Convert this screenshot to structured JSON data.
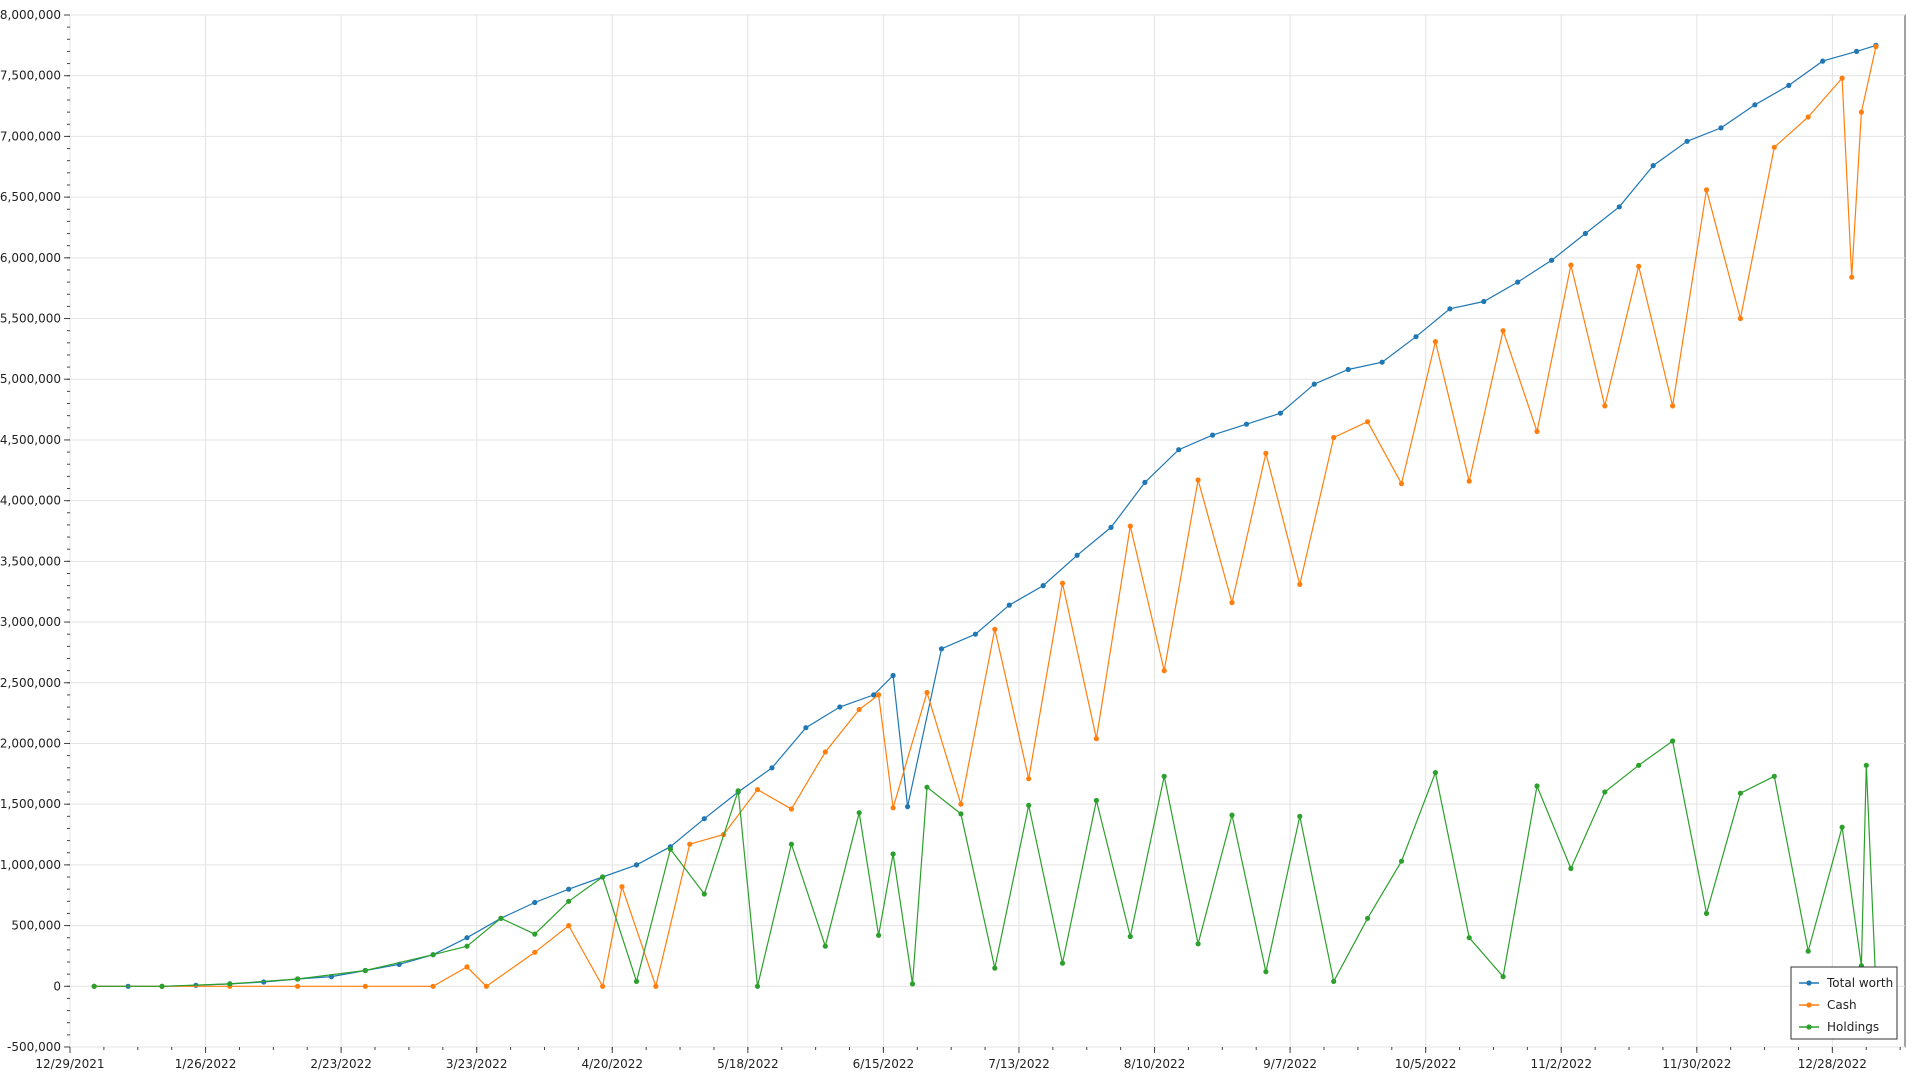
{
  "chart_data": {
    "type": "line",
    "title": "",
    "xlabel": "",
    "ylabel": "",
    "grid": true,
    "legend_position": "bottom-right",
    "xlim": [
      "2021-12-29",
      "2023-01-12"
    ],
    "ylim": [
      -500000,
      8000000
    ],
    "x_ticks": [
      "12/29/2021",
      "1/26/2022",
      "2/23/2022",
      "3/23/2022",
      "4/20/2022",
      "5/18/2022",
      "6/15/2022",
      "7/13/2022",
      "8/10/2022",
      "9/7/2022",
      "10/5/2022",
      "11/2/2022",
      "11/30/2022",
      "12/28/2022"
    ],
    "y_ticks": [
      "-500,000",
      "0",
      "500,000",
      "1,000,000",
      "1,500,000",
      "2,000,000",
      "2,500,000",
      "3,000,000",
      "3,500,000",
      "4,000,000",
      "4,500,000",
      "5,000,000",
      "5,500,000",
      "6,000,000",
      "6,500,000",
      "7,000,000",
      "7,500,000",
      "8,000,000"
    ],
    "series": [
      {
        "name": "Total worth",
        "color": "#1f77b4",
        "points": [
          [
            "2022-01-03",
            0
          ],
          [
            "2022-01-10",
            0
          ],
          [
            "2022-01-17",
            0
          ],
          [
            "2022-01-24",
            8000
          ],
          [
            "2022-01-31",
            20000
          ],
          [
            "2022-02-07",
            35000
          ],
          [
            "2022-02-14",
            60000
          ],
          [
            "2022-02-21",
            80000
          ],
          [
            "2022-02-28",
            130000
          ],
          [
            "2022-03-07",
            180000
          ],
          [
            "2022-03-14",
            260000
          ],
          [
            "2022-03-21",
            400000
          ],
          [
            "2022-03-28",
            560000
          ],
          [
            "2022-04-04",
            690000
          ],
          [
            "2022-04-11",
            800000
          ],
          [
            "2022-04-18",
            900000
          ],
          [
            "2022-04-25",
            1000000
          ],
          [
            "2022-05-02",
            1150000
          ],
          [
            "2022-05-09",
            1380000
          ],
          [
            "2022-05-16",
            1600000
          ],
          [
            "2022-05-23",
            1800000
          ],
          [
            "2022-05-30",
            2130000
          ],
          [
            "2022-06-06",
            2300000
          ],
          [
            "2022-06-13",
            2400000
          ],
          [
            "2022-06-17",
            2560000
          ],
          [
            "2022-06-20",
            1480000
          ],
          [
            "2022-06-27",
            2780000
          ],
          [
            "2022-07-04",
            2900000
          ],
          [
            "2022-07-11",
            3140000
          ],
          [
            "2022-07-18",
            3300000
          ],
          [
            "2022-07-25",
            3550000
          ],
          [
            "2022-08-01",
            3780000
          ],
          [
            "2022-08-08",
            4150000
          ],
          [
            "2022-08-15",
            4420000
          ],
          [
            "2022-08-22",
            4540000
          ],
          [
            "2022-08-29",
            4630000
          ],
          [
            "2022-09-05",
            4720000
          ],
          [
            "2022-09-12",
            4960000
          ],
          [
            "2022-09-19",
            5080000
          ],
          [
            "2022-09-26",
            5140000
          ],
          [
            "2022-10-03",
            5350000
          ],
          [
            "2022-10-10",
            5580000
          ],
          [
            "2022-10-17",
            5640000
          ],
          [
            "2022-10-24",
            5800000
          ],
          [
            "2022-10-31",
            5980000
          ],
          [
            "2022-11-07",
            6200000
          ],
          [
            "2022-11-14",
            6420000
          ],
          [
            "2022-11-21",
            6760000
          ],
          [
            "2022-11-28",
            6960000
          ],
          [
            "2022-12-05",
            7070000
          ],
          [
            "2022-12-12",
            7260000
          ],
          [
            "2022-12-19",
            7420000
          ],
          [
            "2022-12-26",
            7620000
          ],
          [
            "2023-01-02",
            7700000
          ],
          [
            "2023-01-06",
            7750000
          ]
        ]
      },
      {
        "name": "Cash",
        "color": "#ff7f0e",
        "points": [
          [
            "2022-01-03",
            0
          ],
          [
            "2022-01-17",
            0
          ],
          [
            "2022-01-31",
            0
          ],
          [
            "2022-02-14",
            0
          ],
          [
            "2022-02-28",
            0
          ],
          [
            "2022-03-14",
            0
          ],
          [
            "2022-03-21",
            160000
          ],
          [
            "2022-03-25",
            0
          ],
          [
            "2022-04-04",
            280000
          ],
          [
            "2022-04-11",
            500000
          ],
          [
            "2022-04-18",
            0
          ],
          [
            "2022-04-22",
            820000
          ],
          [
            "2022-04-29",
            0
          ],
          [
            "2022-05-06",
            1170000
          ],
          [
            "2022-05-13",
            1250000
          ],
          [
            "2022-05-20",
            1620000
          ],
          [
            "2022-05-27",
            1460000
          ],
          [
            "2022-06-03",
            1930000
          ],
          [
            "2022-06-10",
            2280000
          ],
          [
            "2022-06-14",
            2400000
          ],
          [
            "2022-06-17",
            1470000
          ],
          [
            "2022-06-24",
            2420000
          ],
          [
            "2022-07-01",
            1500000
          ],
          [
            "2022-07-08",
            2940000
          ],
          [
            "2022-07-15",
            1710000
          ],
          [
            "2022-07-22",
            3320000
          ],
          [
            "2022-07-29",
            2040000
          ],
          [
            "2022-08-05",
            3790000
          ],
          [
            "2022-08-12",
            2600000
          ],
          [
            "2022-08-19",
            4170000
          ],
          [
            "2022-08-26",
            3160000
          ],
          [
            "2022-09-02",
            4390000
          ],
          [
            "2022-09-09",
            3310000
          ],
          [
            "2022-09-16",
            4520000
          ],
          [
            "2022-09-23",
            4650000
          ],
          [
            "2022-09-30",
            4140000
          ],
          [
            "2022-10-07",
            5310000
          ],
          [
            "2022-10-14",
            4160000
          ],
          [
            "2022-10-21",
            5400000
          ],
          [
            "2022-10-28",
            4570000
          ],
          [
            "2022-11-04",
            5940000
          ],
          [
            "2022-11-11",
            4780000
          ],
          [
            "2022-11-18",
            5930000
          ],
          [
            "2022-11-25",
            4780000
          ],
          [
            "2022-12-02",
            6560000
          ],
          [
            "2022-12-09",
            5500000
          ],
          [
            "2022-12-16",
            6910000
          ],
          [
            "2022-12-23",
            7160000
          ],
          [
            "2022-12-30",
            7480000
          ],
          [
            "2023-01-01",
            5840000
          ],
          [
            "2023-01-03",
            7200000
          ],
          [
            "2023-01-06",
            7740000
          ]
        ]
      },
      {
        "name": "Holdings",
        "color": "#2ca02c",
        "points": [
          [
            "2022-01-03",
            0
          ],
          [
            "2022-01-17",
            0
          ],
          [
            "2022-01-31",
            20000
          ],
          [
            "2022-02-14",
            60000
          ],
          [
            "2022-02-28",
            130000
          ],
          [
            "2022-03-14",
            260000
          ],
          [
            "2022-03-21",
            330000
          ],
          [
            "2022-03-28",
            560000
          ],
          [
            "2022-04-04",
            430000
          ],
          [
            "2022-04-11",
            700000
          ],
          [
            "2022-04-18",
            900000
          ],
          [
            "2022-04-25",
            40000
          ],
          [
            "2022-05-02",
            1130000
          ],
          [
            "2022-05-09",
            760000
          ],
          [
            "2022-05-16",
            1610000
          ],
          [
            "2022-05-20",
            0
          ],
          [
            "2022-05-27",
            1170000
          ],
          [
            "2022-06-03",
            330000
          ],
          [
            "2022-06-10",
            1430000
          ],
          [
            "2022-06-14",
            420000
          ],
          [
            "2022-06-17",
            1090000
          ],
          [
            "2022-06-21",
            20000
          ],
          [
            "2022-06-24",
            1640000
          ],
          [
            "2022-07-01",
            1420000
          ],
          [
            "2022-07-08",
            150000
          ],
          [
            "2022-07-15",
            1490000
          ],
          [
            "2022-07-22",
            190000
          ],
          [
            "2022-07-29",
            1530000
          ],
          [
            "2022-08-05",
            410000
          ],
          [
            "2022-08-12",
            1730000
          ],
          [
            "2022-08-19",
            350000
          ],
          [
            "2022-08-26",
            1410000
          ],
          [
            "2022-09-02",
            120000
          ],
          [
            "2022-09-09",
            1400000
          ],
          [
            "2022-09-16",
            40000
          ],
          [
            "2022-09-23",
            560000
          ],
          [
            "2022-09-30",
            1030000
          ],
          [
            "2022-10-07",
            1760000
          ],
          [
            "2022-10-14",
            400000
          ],
          [
            "2022-10-21",
            80000
          ],
          [
            "2022-10-28",
            1650000
          ],
          [
            "2022-11-04",
            970000
          ],
          [
            "2022-11-11",
            1600000
          ],
          [
            "2022-11-18",
            1820000
          ],
          [
            "2022-11-25",
            2020000
          ],
          [
            "2022-12-02",
            600000
          ],
          [
            "2022-12-09",
            1590000
          ],
          [
            "2022-12-16",
            1730000
          ],
          [
            "2022-12-23",
            290000
          ],
          [
            "2022-12-30",
            1310000
          ],
          [
            "2023-01-03",
            170000
          ],
          [
            "2023-01-04",
            1820000
          ],
          [
            "2023-01-06",
            0
          ]
        ]
      }
    ]
  }
}
